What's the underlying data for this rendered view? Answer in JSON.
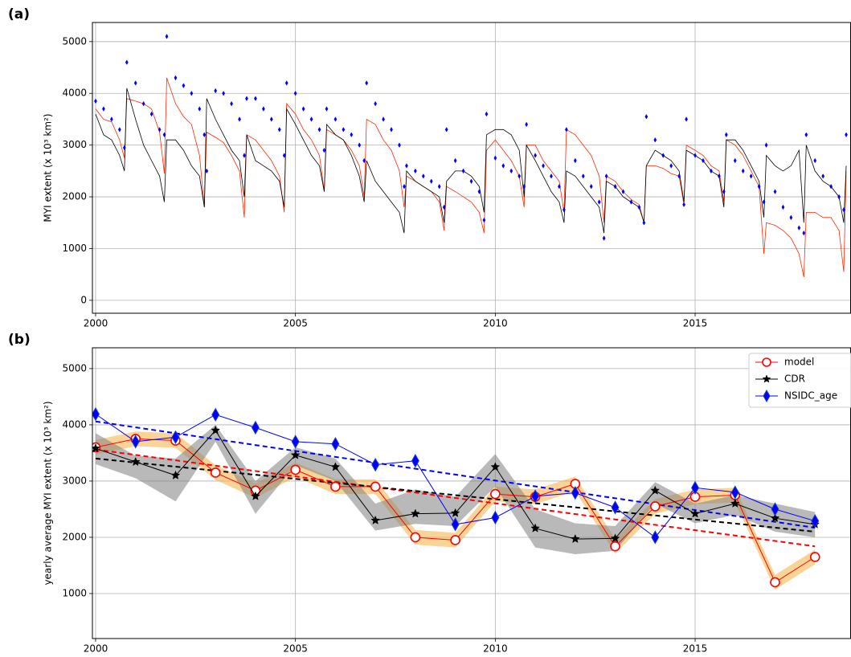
{
  "chart_data": [
    {
      "type": "line",
      "panel_label": "(a)",
      "ylabel": "MYI extent (x 10³ km²)",
      "grid": true,
      "xlim": [
        1999.92,
        2018.9
      ],
      "xticks": [
        2000,
        2005,
        2010,
        2015
      ],
      "ylim": [
        -250,
        5370
      ],
      "yticks": [
        0,
        1000,
        2000,
        3000,
        4000,
        5000
      ],
      "x": [
        2000,
        2000.2,
        2000.4,
        2000.6,
        2000.72,
        2000.78,
        2001,
        2001.2,
        2001.4,
        2001.6,
        2001.72,
        2001.78,
        2002,
        2002.2,
        2002.4,
        2002.6,
        2002.72,
        2002.78,
        2003,
        2003.2,
        2003.4,
        2003.6,
        2003.72,
        2003.78,
        2004,
        2004.2,
        2004.4,
        2004.6,
        2004.72,
        2004.78,
        2005,
        2005.2,
        2005.4,
        2005.6,
        2005.72,
        2005.78,
        2006,
        2006.2,
        2006.4,
        2006.6,
        2006.72,
        2006.78,
        2007,
        2007.2,
        2007.4,
        2007.6,
        2007.72,
        2007.78,
        2008,
        2008.2,
        2008.4,
        2008.6,
        2008.72,
        2008.78,
        2009,
        2009.2,
        2009.4,
        2009.6,
        2009.72,
        2009.78,
        2010,
        2010.2,
        2010.4,
        2010.6,
        2010.72,
        2010.78,
        2011,
        2011.2,
        2011.4,
        2011.6,
        2011.72,
        2011.78,
        2012,
        2012.2,
        2012.4,
        2012.6,
        2012.72,
        2012.78,
        2013,
        2013.2,
        2013.4,
        2013.6,
        2013.72,
        2013.78,
        2014,
        2014.2,
        2014.4,
        2014.6,
        2014.72,
        2014.78,
        2015,
        2015.2,
        2015.4,
        2015.6,
        2015.72,
        2015.78,
        2016,
        2016.2,
        2016.4,
        2016.6,
        2016.72,
        2016.78,
        2017,
        2017.2,
        2017.4,
        2017.6,
        2017.72,
        2017.78,
        2018,
        2018.2,
        2018.4,
        2018.6,
        2018.72,
        2018.78
      ],
      "series": [
        {
          "color": "#ff2a00",
          "marker": "none",
          "linestyle": "solid",
          "values": [
            3700,
            3500,
            3450,
            3100,
            2750,
            3900,
            3850,
            3800,
            3700,
            3250,
            2450,
            4300,
            3800,
            3550,
            3400,
            2800,
            1800,
            3250,
            3150,
            3050,
            2800,
            2500,
            1600,
            3200,
            3100,
            2900,
            2700,
            2400,
            1700,
            3800,
            3600,
            3300,
            3100,
            2800,
            2100,
            3300,
            3200,
            3100,
            2900,
            2600,
            2000,
            3500,
            3400,
            3100,
            2900,
            2500,
            1800,
            2400,
            2300,
            2200,
            2100,
            1900,
            1350,
            2200,
            2100,
            2000,
            1900,
            1700,
            1300,
            2900,
            3100,
            2900,
            2700,
            2400,
            1800,
            3000,
            3000,
            2700,
            2500,
            2300,
            1700,
            3300,
            3200,
            3000,
            2800,
            2400,
            1500,
            2400,
            2300,
            2100,
            1950,
            1850,
            1500,
            2600,
            2600,
            2550,
            2450,
            2400,
            1850,
            3000,
            2900,
            2800,
            2600,
            2500,
            1900,
            3100,
            3000,
            2800,
            2500,
            2200,
            900,
            1500,
            1450,
            1350,
            1200,
            900,
            450,
            1700,
            1700,
            1600,
            1600,
            1350,
            550,
            2500
          ]
        },
        {
          "color": "#000000",
          "marker": "none",
          "linestyle": "solid",
          "values": [
            3600,
            3200,
            3100,
            2800,
            2500,
            4100,
            3500,
            3000,
            2700,
            2400,
            1900,
            3100,
            3100,
            2900,
            2600,
            2400,
            1800,
            3900,
            3500,
            3200,
            2900,
            2700,
            2000,
            3200,
            2700,
            2600,
            2500,
            2300,
            1800,
            3700,
            3400,
            3100,
            2800,
            2600,
            2100,
            3400,
            3200,
            3100,
            2800,
            2400,
            1900,
            2700,
            2300,
            2100,
            1900,
            1700,
            1300,
            2500,
            2300,
            2200,
            2100,
            2000,
            1500,
            2300,
            2500,
            2500,
            2400,
            2200,
            1700,
            3200,
            3300,
            3300,
            3200,
            2900,
            2000,
            3000,
            2700,
            2400,
            2100,
            1900,
            1500,
            2500,
            2400,
            2200,
            2000,
            1800,
            1300,
            2300,
            2200,
            2000,
            1900,
            1800,
            1500,
            2600,
            2900,
            2800,
            2700,
            2500,
            1900,
            2900,
            2800,
            2700,
            2500,
            2400,
            1800,
            3100,
            3100,
            2900,
            2600,
            2300,
            1600,
            2800,
            2600,
            2500,
            2600,
            2900,
            1500,
            3000,
            2500,
            2300,
            2200,
            2000,
            1500,
            2600
          ]
        },
        {
          "color": "#0000ff",
          "marker": "d",
          "linestyle": "none",
          "values": [
            3850,
            3700,
            3500,
            3300,
            2950,
            4600,
            4200,
            3800,
            3600,
            3300,
            3200,
            5100,
            4300,
            4150,
            4000,
            3700,
            3200,
            2500,
            4050,
            4000,
            3800,
            3500,
            2800,
            3900,
            3900,
            3700,
            3500,
            3300,
            2800,
            4200,
            4000,
            3700,
            3500,
            3300,
            2900,
            3700,
            3500,
            3300,
            3200,
            3000,
            2700,
            4200,
            3800,
            3500,
            3300,
            3000,
            2200,
            2600,
            2500,
            2400,
            2300,
            2200,
            1800,
            3300,
            2700,
            2500,
            2300,
            2100,
            1550,
            3600,
            2750,
            2600,
            2500,
            2400,
            2200,
            3400,
            2800,
            2600,
            2400,
            2200,
            1750,
            3300,
            2700,
            2400,
            2200,
            1900,
            1200,
            2400,
            2200,
            2100,
            1900,
            1800,
            1500,
            3550,
            3100,
            2800,
            2600,
            2400,
            1850,
            3500,
            2800,
            2700,
            2500,
            2400,
            2100,
            3200,
            2700,
            2500,
            2400,
            2200,
            1900,
            3000,
            2100,
            1800,
            1600,
            1400,
            1300,
            3200,
            2700,
            2400,
            2200,
            2000,
            1750,
            3200
          ]
        }
      ]
    },
    {
      "type": "line",
      "panel_label": "(b)",
      "ylabel": "yearly average MYI extent (x 10³ km²)",
      "grid": true,
      "legend": "upper right",
      "xlim": [
        1999.92,
        2018.9
      ],
      "xticks": [
        2000,
        2005,
        2010,
        2015
      ],
      "ylim": [
        200,
        5370
      ],
      "yticks": [
        1000,
        2000,
        3000,
        4000,
        5000
      ],
      "x": [
        2000,
        2001,
        2002,
        2003,
        2004,
        2005,
        2006,
        2007,
        2008,
        2009,
        2010,
        2011,
        2012,
        2013,
        2014,
        2015,
        2016,
        2017,
        2018
      ],
      "series": [
        {
          "name": "model",
          "color": "#ff0000",
          "band_color": "#f5b041",
          "marker": "o",
          "linestyle": "solid",
          "values": [
            3600,
            3750,
            3720,
            3150,
            2830,
            3200,
            2900,
            2900,
            2000,
            1950,
            2770,
            2720,
            2950,
            1840,
            2550,
            2720,
            2750,
            1200,
            1650
          ],
          "band_lower": [
            3470,
            3620,
            3590,
            3020,
            2700,
            3070,
            2770,
            2770,
            1870,
            1820,
            2640,
            2590,
            2820,
            1710,
            2420,
            2590,
            2620,
            1070,
            1520
          ],
          "band_upper": [
            3730,
            3880,
            3850,
            3280,
            2960,
            3330,
            3030,
            3030,
            2130,
            2080,
            2900,
            2850,
            3080,
            1970,
            2680,
            2850,
            2880,
            1330,
            1780
          ],
          "trend": {
            "x": [
              2000,
              2018
            ],
            "values": [
              3560,
              1840
            ]
          }
        },
        {
          "name": "CDR",
          "color": "#000000",
          "band_color": "#808080",
          "marker": "*",
          "linestyle": "solid",
          "values": [
            3580,
            3340,
            3100,
            3900,
            2730,
            3460,
            3250,
            2300,
            2420,
            2430,
            3250,
            2160,
            1970,
            1980,
            2830,
            2420,
            2600,
            2340,
            2230
          ],
          "band_lower": [
            3300,
            3050,
            2640,
            3700,
            2420,
            3280,
            3000,
            2120,
            2240,
            2200,
            2900,
            1820,
            1700,
            1760,
            2600,
            2250,
            2400,
            2100,
            2000
          ],
          "band_upper": [
            3850,
            3450,
            3400,
            4000,
            3000,
            3600,
            3400,
            2600,
            2850,
            2720,
            3480,
            2500,
            2250,
            2200,
            2980,
            2600,
            2750,
            2600,
            2450
          ],
          "trend": {
            "x": [
              2000,
              2018
            ],
            "values": [
              3400,
              2100
            ]
          }
        },
        {
          "name": "NSIDC_age",
          "color": "#0000ff",
          "marker": "d",
          "linestyle": "solid",
          "values": [
            4190,
            3700,
            3780,
            4180,
            3950,
            3700,
            3660,
            3290,
            3360,
            2230,
            2350,
            2730,
            2790,
            2530,
            2000,
            2880,
            2800,
            2500,
            2290
          ],
          "trend": {
            "x": [
              2000,
              2018
            ],
            "values": [
              4060,
              2170
            ]
          }
        }
      ]
    }
  ]
}
